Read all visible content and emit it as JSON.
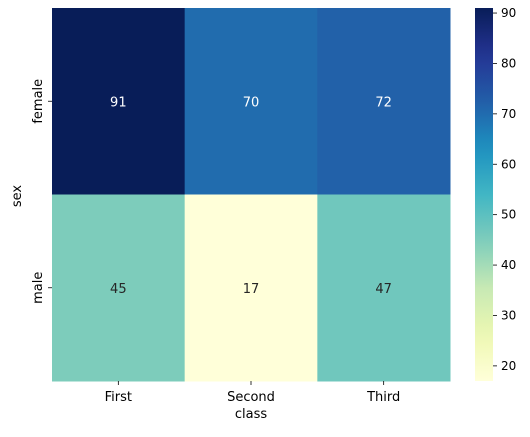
{
  "chart_data": {
    "type": "heatmap",
    "title": "",
    "xlabel": "class",
    "ylabel": "sex",
    "x_categories": [
      "First",
      "Second",
      "Third"
    ],
    "y_categories": [
      "female",
      "male"
    ],
    "values": [
      [
        91,
        70,
        72
      ],
      [
        45,
        17,
        47
      ]
    ],
    "colormap": "YlGnBu",
    "colorbar": {
      "range": [
        17,
        91
      ],
      "ticks": [
        20,
        30,
        40,
        50,
        60,
        70,
        80,
        90
      ]
    },
    "annotated": true,
    "grid": false
  }
}
